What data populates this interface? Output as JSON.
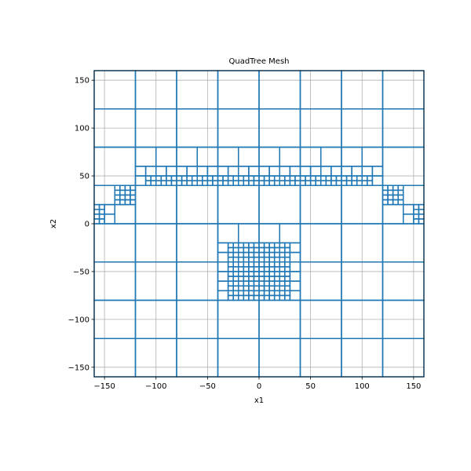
{
  "chart_data": {
    "type": "quadtree-mesh",
    "title": "QuadTree Mesh",
    "xlabel": "x1",
    "ylabel": "x2",
    "xlim": [
      -160,
      160
    ],
    "ylim": [
      -160,
      160
    ],
    "xticks": [
      -150,
      -100,
      -50,
      0,
      50,
      100,
      150
    ],
    "yticks": [
      -150,
      -100,
      -50,
      0,
      50,
      100,
      150
    ],
    "grid": true,
    "line_color": "#1f77b4",
    "refinement": {
      "base_cell_size": 40,
      "min_cell_size": 5,
      "domain": [
        -160,
        160,
        -160,
        160
      ],
      "regions": [
        {
          "x": [
            -30,
            30
          ],
          "y": [
            -80,
            -20
          ],
          "finest_cell_size": 5
        },
        {
          "x": [
            -110,
            110
          ],
          "y": [
            40,
            50
          ],
          "finest_cell_size": 5
        },
        {
          "x": [
            -140,
            -120
          ],
          "y": [
            20,
            40
          ],
          "finest_cell_size": 5
        },
        {
          "x": [
            120,
            140
          ],
          "y": [
            20,
            40
          ],
          "finest_cell_size": 5
        },
        {
          "x": [
            -160,
            -150
          ],
          "y": [
            0,
            20
          ],
          "finest_cell_size": 5
        },
        {
          "x": [
            150,
            160
          ],
          "y": [
            0,
            20
          ],
          "finest_cell_size": 5
        }
      ]
    }
  }
}
